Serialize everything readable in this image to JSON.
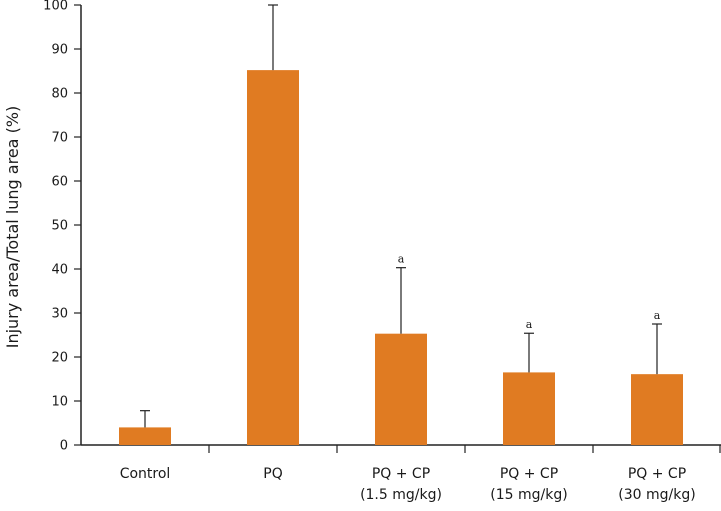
{
  "chart_data": {
    "type": "bar",
    "title": "",
    "xlabel": "",
    "ylabel": "Injury area/Total lung area (%)",
    "ylim": [
      0,
      100
    ],
    "yticks": [
      0,
      10,
      20,
      30,
      40,
      50,
      60,
      70,
      80,
      90,
      100
    ],
    "categories": [
      [
        "Control"
      ],
      [
        "PQ"
      ],
      [
        "PQ + CP",
        "(1.5 mg/kg)"
      ],
      [
        "PQ + CP",
        "(15 mg/kg)"
      ],
      [
        "PQ + CP",
        "(30 mg/kg)"
      ]
    ],
    "values": [
      4,
      85.2,
      25.3,
      16.5,
      16.1
    ],
    "error_upper": [
      7.8,
      100,
      40.3,
      25.4,
      27.5
    ],
    "annotations": [
      "",
      "",
      "a",
      "a",
      "a"
    ],
    "bar_color": "#e07b22",
    "grid": false
  }
}
